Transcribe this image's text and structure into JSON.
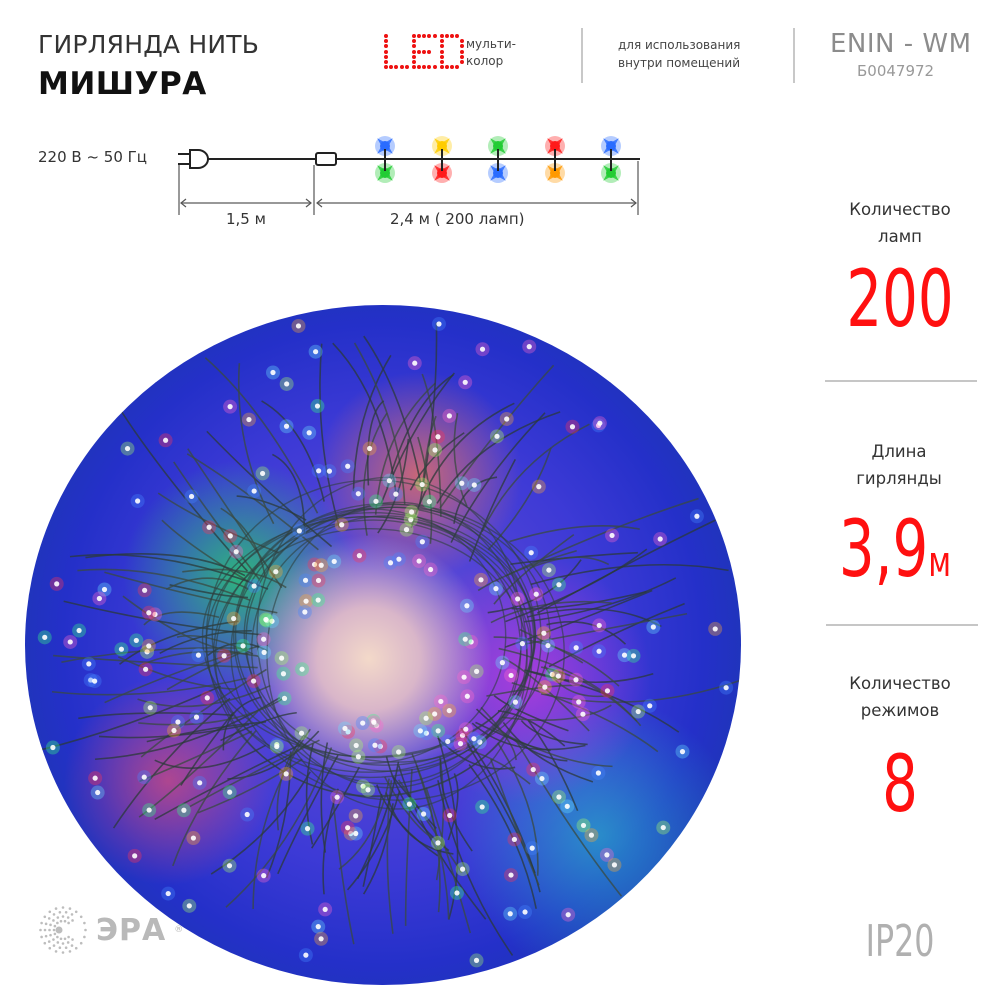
{
  "header": {
    "title_line1": "ГИРЛЯНДА НИТЬ",
    "title_line2": "МИШУРА",
    "led_logo": "LED",
    "led_color_type_line1": "мульти-",
    "led_color_type_line2": "колор",
    "usage_line1": "для использования",
    "usage_line2": "внутри помещений",
    "model": "ENIN - WM",
    "article": "Б0047972"
  },
  "diagram": {
    "voltage": "220 В ~ 50 Гц",
    "cable_length_label": "1,5 м",
    "garland_length_label": "2,4  м ( 200 ламп)",
    "lamp_colors_top": [
      "#2a6cff",
      "#ffcc00",
      "#22cc33",
      "#ff1a1a",
      "#2a6cff"
    ],
    "lamp_colors_bottom": [
      "#22cc33",
      "#ff1a1a",
      "#2a6cff",
      "#ff9900",
      "#22cc33"
    ]
  },
  "specs": {
    "lamps": {
      "label_line1": "Количество",
      "label_line2": "ламп",
      "value": "200"
    },
    "length": {
      "label_line1": "Длина",
      "label_line2": "гирлянды",
      "value": "3,9",
      "unit": "м"
    },
    "modes": {
      "label_line1": "Количество",
      "label_line2": "режимов",
      "value": "8"
    },
    "ip_rating": "IP20"
  },
  "photo": {
    "subject": "multicolor tinsel garland lights coiled in a circle"
  },
  "brand": {
    "name": "ЭРА",
    "registered": "®"
  },
  "colors": {
    "accent_red": "#ff1010",
    "text_dark": "#222222",
    "text_gray": "#8c8c8c",
    "divider": "#c6c6c6"
  }
}
